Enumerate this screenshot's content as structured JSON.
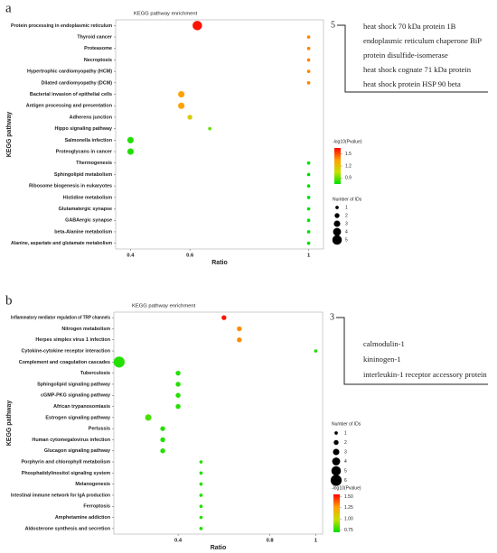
{
  "chart_data": [
    {
      "type": "bubble",
      "panel_label": "a",
      "title": "KEGG pathway enrichment",
      "xlabel": "Ratio",
      "ylabel": "KEGG pathway",
      "categories": [
        "Protein processing in endoplasmic reticulum",
        "Thyroid cancer",
        "Proteasome",
        "Necroptosis",
        "Hypertrophic cardiomyopathy (HCM)",
        "Dilated cardiomyopathy (DCM)",
        "Bacterial invasion of epithelial cells",
        "Antigen processing and presentation",
        "Adherens junction",
        "Hippo signaling pathway",
        "Salmonella infection",
        "Proteoglycans in cancer",
        "Thermogenesis",
        "Sphingolipid metabolism",
        "Ribosome biogenesis in eukaryotes",
        "Histidine metabolism",
        "Glutamatergic synapse",
        "GABAergic synapse",
        "beta-Alanine metabolism",
        "Alanine, aspartate and glutamate metabolism"
      ],
      "values": [
        0.625,
        1.0,
        1.0,
        1.0,
        1.0,
        1.0,
        0.571,
        0.571,
        0.6,
        0.667,
        0.4,
        0.4,
        1.0,
        1.0,
        1.0,
        1.0,
        1.0,
        1.0,
        1.0,
        1.0
      ],
      "sizes": [
        5,
        1,
        1,
        1,
        1,
        1,
        3,
        3,
        2,
        1,
        3,
        3,
        1,
        1,
        1,
        1,
        1,
        1,
        1,
        1
      ],
      "color_values": [
        1.62,
        1.4,
        1.4,
        1.4,
        1.4,
        1.4,
        1.35,
        1.35,
        1.15,
        0.9,
        0.8,
        0.8,
        0.75,
        0.75,
        0.75,
        0.75,
        0.75,
        0.75,
        0.75,
        0.75
      ],
      "xlim": [
        0.35,
        1.05
      ],
      "xticks": [
        0.4,
        0.6,
        1.0
      ],
      "color_title": "-log10(Pvalue)",
      "clim": [
        0.75,
        1.65
      ],
      "cticks": [
        0.9,
        1.2,
        1.5
      ],
      "colormap": [
        "#00e000",
        "#c8e000",
        "#ffa000",
        "#ff0000"
      ],
      "size_title": "Number of IDs",
      "size_legend": [
        1,
        2,
        3,
        4,
        5
      ],
      "annotation": {
        "count": 5,
        "proteins": [
          "heat shock 70 kDa protein 1B",
          "endoplasmic reticulum chaperone BiP",
          "protein disulfide-isomerase",
          "heat shock cognate 71 kDa protein",
          "heat shock protein HSP 90 beta"
        ]
      }
    },
    {
      "type": "bubble",
      "panel_label": "b",
      "title": "KEGG pathway enrichment",
      "xlabel": "Ratio",
      "ylabel": "KEGG pathway",
      "categories": [
        "Inflammatory mediator regulation of TRP channels",
        "Nitrogen metabolism",
        "Herpes simplex virus 1 infection",
        "Cytokine-cytokine receptor interaction",
        "Complement and coagulation cascades",
        "Tuberculosis",
        "Sphingolipid signaling pathway",
        "cGMP-PKG signaling pathway",
        "African trypanosomiasis",
        "Estrogen signaling pathway",
        "Pertussis",
        "Human cytomegalovirus infection",
        "Glucagon signaling pathway",
        "Porphyrin and chlorophyll metabolism",
        "Phosphatidylinositol signaling system",
        "Melanogenesis",
        "Intestinal immune network for IgA production",
        "Ferroptosis",
        "Amphetamine addiction",
        "Aldosterone synthesis and secretion"
      ],
      "values": [
        0.6,
        0.667,
        0.667,
        1.0,
        0.143,
        0.4,
        0.4,
        0.4,
        0.4,
        0.27,
        0.333,
        0.333,
        0.333,
        0.5,
        0.5,
        0.5,
        0.5,
        0.5,
        0.5,
        0.5
      ],
      "sizes": [
        2,
        2,
        2,
        1,
        6,
        2,
        2,
        2,
        2,
        3,
        2,
        2,
        2,
        1,
        1,
        1,
        1,
        1,
        1,
        1
      ],
      "color_values": [
        1.52,
        1.3,
        1.3,
        0.75,
        0.75,
        0.75,
        0.75,
        0.75,
        0.75,
        0.8,
        0.75,
        0.75,
        0.75,
        0.75,
        0.75,
        0.75,
        0.75,
        0.75,
        0.75,
        0.75
      ],
      "xlim": [
        0.12,
        1.03
      ],
      "xticks": [
        0.4,
        0.8,
        1.0
      ],
      "color_title": "-log10(Pvalue)",
      "clim": [
        0.7,
        1.55
      ],
      "cticks": [
        {
          "value": 0.75,
          "label": "0.75"
        },
        {
          "value": 1.0,
          "label": "1.00"
        },
        {
          "value": 1.25,
          "label": "1.25"
        },
        {
          "value": 1.5,
          "label": "1.50"
        }
      ],
      "colormap": [
        "#00e000",
        "#c8e000",
        "#ffa000",
        "#ff0000"
      ],
      "size_title": "Number of IDs",
      "size_legend": [
        1,
        2,
        3,
        4,
        5,
        6
      ],
      "annotation": {
        "count": 3,
        "proteins": [
          "calmodulin-1",
          "kininogen-1",
          "interleukin-1 receptor accessory protein"
        ]
      }
    }
  ]
}
